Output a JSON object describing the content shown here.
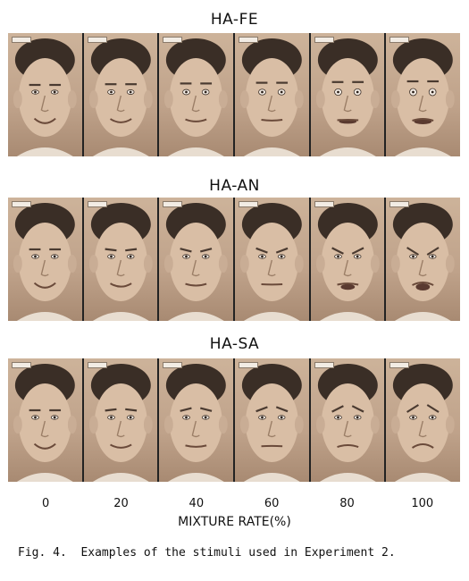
{
  "figure": {
    "panels": [
      {
        "title": "HA-FE",
        "id": "ha-fe"
      },
      {
        "title": "HA-AN",
        "id": "ha-an"
      },
      {
        "title": "HA-SA",
        "id": "ha-sa"
      }
    ],
    "mixture_rates": [
      "0",
      "20",
      "40",
      "60",
      "80",
      "100"
    ],
    "axis_label": "MIXTURE RATE(%)",
    "caption": "Fig. 4.  Examples of the stimuli used in Experiment 2.",
    "colors": {
      "photo_tone": "#bfa28a",
      "hair": "#3a2e26",
      "frame_divider": "#222222"
    }
  }
}
